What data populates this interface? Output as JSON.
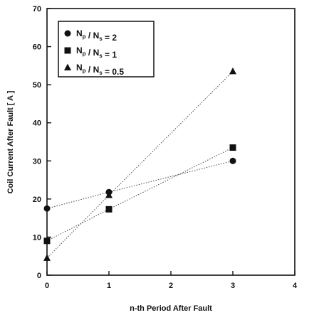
{
  "chart_data": {
    "type": "scatter",
    "title": "",
    "xlabel": "n-th Period After Fault",
    "ylabel": "Coil Current After Fault [ A ]",
    "xlim": [
      0,
      4
    ],
    "ylim": [
      0,
      70
    ],
    "xticks": [
      "0",
      "1",
      "2",
      "3",
      "4"
    ],
    "yticks": [
      "0",
      "10",
      "20",
      "30",
      "40",
      "50",
      "60",
      "70"
    ],
    "grid": false,
    "legend_position": "top-left",
    "series": [
      {
        "name": "Np / Ns = 2",
        "ratio_label": "2",
        "marker": "circle",
        "x": [
          0,
          1,
          3
        ],
        "y": [
          17.5,
          21.8,
          30
        ]
      },
      {
        "name": "Np / Ns = 1",
        "ratio_label": "1",
        "marker": "square",
        "x": [
          0,
          1,
          3
        ],
        "y": [
          9,
          17.3,
          33.5
        ]
      },
      {
        "name": "Np / Ns = 0.5",
        "ratio_label": "0.5",
        "marker": "triangle",
        "x": [
          0,
          1,
          3
        ],
        "y": [
          4.5,
          21,
          53.5
        ]
      }
    ]
  }
}
